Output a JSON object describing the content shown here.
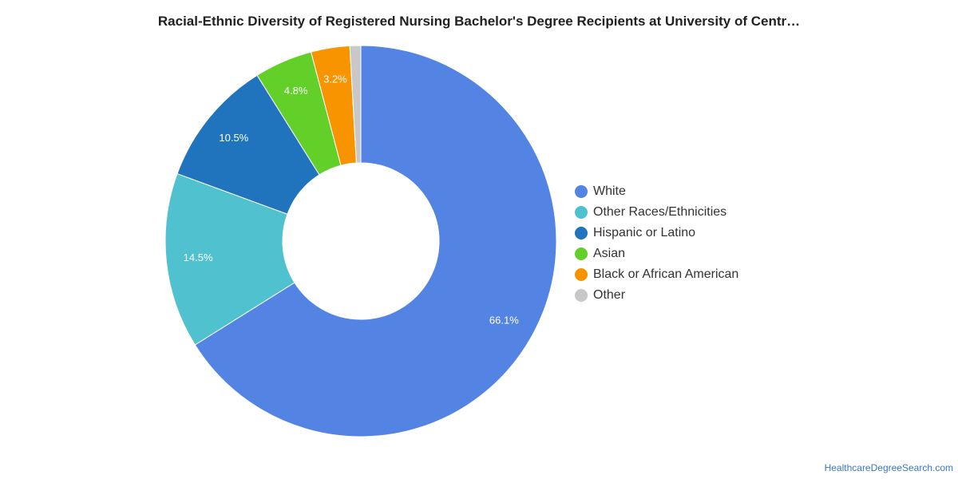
{
  "chart_data": {
    "type": "pie",
    "donut": true,
    "title": "Racial-Ethnic Diversity of Registered Nursing Bachelor's Degree Recipients at University of Centr…",
    "legend_position": "right",
    "slices": [
      {
        "name": "White",
        "value": 66.1,
        "label": "66.1%",
        "color": "#5384e3"
      },
      {
        "name": "Other Races/Ethnicities",
        "value": 14.5,
        "label": "14.5%",
        "color": "#50c1cf"
      },
      {
        "name": "Hispanic or Latino",
        "value": 10.5,
        "label": "10.5%",
        "color": "#1f74bd"
      },
      {
        "name": "Asian",
        "value": 4.8,
        "label": "4.8%",
        "color": "#63d02a"
      },
      {
        "name": "Black or African American",
        "value": 3.2,
        "label": "3.2%",
        "color": "#f89400"
      },
      {
        "name": "Other",
        "value": 0.9,
        "label": "",
        "color": "#c8c8c8"
      }
    ]
  },
  "watermark": "HealthcareDegreeSearch.com"
}
